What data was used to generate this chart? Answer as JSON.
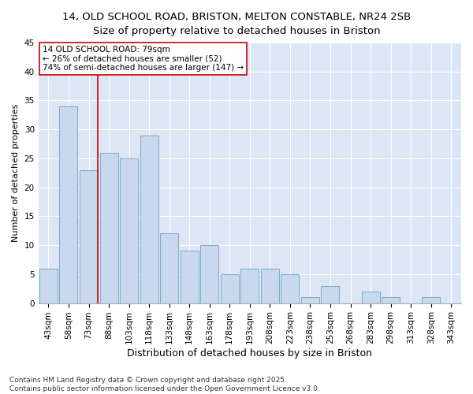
{
  "title1": "14, OLD SCHOOL ROAD, BRISTON, MELTON CONSTABLE, NR24 2SB",
  "title2": "Size of property relative to detached houses in Briston",
  "xlabel": "Distribution of detached houses by size in Briston",
  "ylabel": "Number of detached properties",
  "categories": [
    "43sqm",
    "58sqm",
    "73sqm",
    "88sqm",
    "103sqm",
    "118sqm",
    "133sqm",
    "148sqm",
    "163sqm",
    "178sqm",
    "193sqm",
    "208sqm",
    "223sqm",
    "238sqm",
    "253sqm",
    "268sqm",
    "283sqm",
    "298sqm",
    "313sqm",
    "328sqm",
    "343sqm"
  ],
  "values": [
    6,
    34,
    23,
    26,
    25,
    29,
    12,
    9,
    10,
    5,
    6,
    6,
    5,
    1,
    3,
    0,
    2,
    1,
    0,
    1,
    0
  ],
  "bar_color": "#c9d9ed",
  "bar_edge_color": "#7aaac8",
  "vline_x_index": 2,
  "vline_color": "#cc0000",
  "annotation_text": "14 OLD SCHOOL ROAD: 79sqm\n← 26% of detached houses are smaller (52)\n74% of semi-detached houses are larger (147) →",
  "annotation_box_facecolor": "#ffffff",
  "annotation_box_edgecolor": "#cc0000",
  "ylim": [
    0,
    45
  ],
  "yticks": [
    0,
    5,
    10,
    15,
    20,
    25,
    30,
    35,
    40,
    45
  ],
  "bg_color": "#dce6f5",
  "footnote": "Contains HM Land Registry data © Crown copyright and database right 2025.\nContains public sector information licensed under the Open Government Licence v3.0.",
  "title1_fontsize": 9.5,
  "title2_fontsize": 9.5,
  "xlabel_fontsize": 9,
  "ylabel_fontsize": 8,
  "tick_fontsize": 7.5,
  "annotation_fontsize": 7.5,
  "footnote_fontsize": 6.5
}
